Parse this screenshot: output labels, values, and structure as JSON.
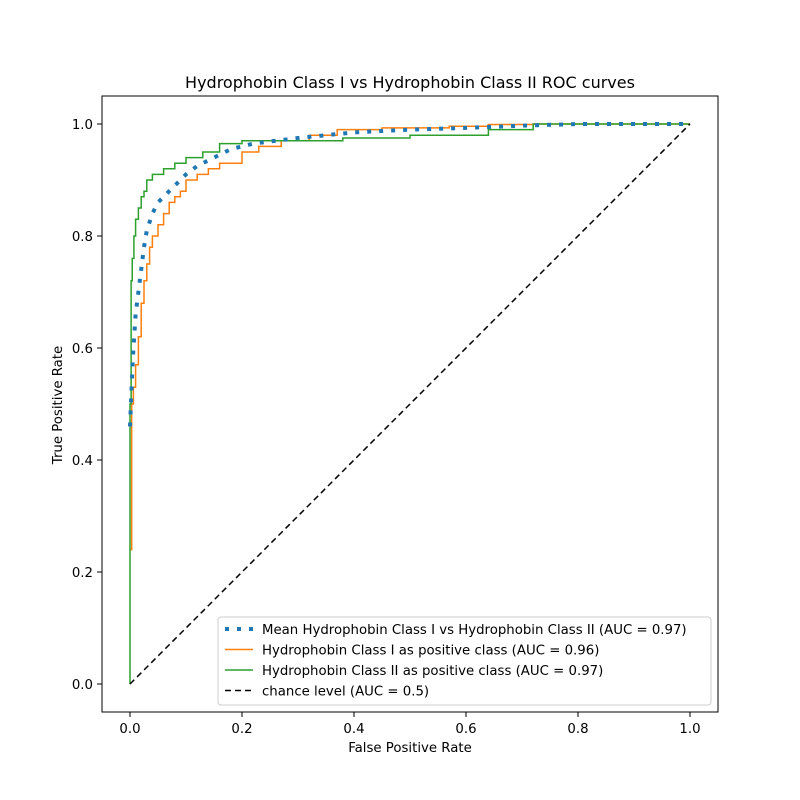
{
  "chart_data": {
    "type": "line",
    "title": "Hydrophobin Class I vs Hydrophobin Class II ROC curves",
    "xlabel": "False Positive Rate",
    "ylabel": "True Positive Rate",
    "xlim": [
      -0.05,
      1.05
    ],
    "ylim": [
      -0.05,
      1.05
    ],
    "xticks": [
      0.0,
      0.2,
      0.4,
      0.6,
      0.8,
      1.0
    ],
    "yticks": [
      0.0,
      0.2,
      0.4,
      0.6,
      0.8,
      1.0
    ],
    "xtick_labels": [
      "0.0",
      "0.2",
      "0.4",
      "0.6",
      "0.8",
      "1.0"
    ],
    "ytick_labels": [
      "0.0",
      "0.2",
      "0.4",
      "0.6",
      "0.8",
      "1.0"
    ],
    "grid": false,
    "legend_position": "lower-right",
    "series": [
      {
        "name": "Mean Hydrophobin Class I vs Hydrophobin Class II (AUC = 0.97)",
        "color": "#1f77b4",
        "style": "dotted",
        "x": [
          0.0,
          0.005,
          0.01,
          0.015,
          0.02,
          0.025,
          0.03,
          0.04,
          0.05,
          0.06,
          0.08,
          0.1,
          0.12,
          0.15,
          0.18,
          0.22,
          0.3,
          0.4,
          0.5,
          0.6,
          0.7,
          0.8,
          0.9,
          1.0
        ],
        "y": [
          0.46,
          0.58,
          0.66,
          0.7,
          0.74,
          0.78,
          0.81,
          0.84,
          0.86,
          0.87,
          0.89,
          0.91,
          0.925,
          0.94,
          0.955,
          0.965,
          0.975,
          0.985,
          0.99,
          0.993,
          0.997,
          1.0,
          1.0,
          1.0
        ]
      },
      {
        "name": "Hydrophobin Class I as positive class (AUC = 0.96)",
        "color": "#ff7f0e",
        "style": "steps",
        "x": [
          0.0,
          0.003,
          0.003,
          0.006,
          0.006,
          0.01,
          0.01,
          0.015,
          0.015,
          0.02,
          0.02,
          0.025,
          0.025,
          0.03,
          0.03,
          0.035,
          0.035,
          0.04,
          0.04,
          0.05,
          0.05,
          0.06,
          0.06,
          0.07,
          0.07,
          0.08,
          0.08,
          0.09,
          0.09,
          0.1,
          0.1,
          0.12,
          0.12,
          0.14,
          0.14,
          0.16,
          0.16,
          0.2,
          0.2,
          0.23,
          0.23,
          0.27,
          0.27,
          0.32,
          0.32,
          0.37,
          0.37,
          0.45,
          0.45,
          0.57,
          0.57,
          0.64,
          0.64,
          0.72,
          0.72,
          1.0
        ],
        "y": [
          0.24,
          0.24,
          0.5,
          0.5,
          0.53,
          0.53,
          0.57,
          0.57,
          0.62,
          0.62,
          0.68,
          0.68,
          0.72,
          0.72,
          0.75,
          0.75,
          0.78,
          0.78,
          0.8,
          0.8,
          0.82,
          0.82,
          0.84,
          0.84,
          0.86,
          0.86,
          0.87,
          0.87,
          0.88,
          0.88,
          0.9,
          0.9,
          0.91,
          0.91,
          0.92,
          0.92,
          0.93,
          0.93,
          0.95,
          0.95,
          0.96,
          0.96,
          0.97,
          0.97,
          0.98,
          0.98,
          0.99,
          0.99,
          0.993,
          0.993,
          0.996,
          0.996,
          0.999,
          0.999,
          1.0,
          1.0
        ]
      },
      {
        "name": "Hydrophobin Class II as positive class (AUC = 0.97)",
        "color": "#2ca02c",
        "style": "steps",
        "x": [
          0.0,
          0.0,
          0.002,
          0.002,
          0.004,
          0.004,
          0.007,
          0.007,
          0.01,
          0.01,
          0.015,
          0.015,
          0.02,
          0.02,
          0.025,
          0.025,
          0.03,
          0.03,
          0.04,
          0.04,
          0.06,
          0.06,
          0.08,
          0.08,
          0.1,
          0.1,
          0.13,
          0.13,
          0.16,
          0.16,
          0.2,
          0.2,
          0.38,
          0.38,
          0.5,
          0.5,
          0.64,
          0.64,
          0.72,
          0.72,
          1.0
        ],
        "y": [
          0.0,
          0.5,
          0.5,
          0.72,
          0.72,
          0.76,
          0.76,
          0.8,
          0.8,
          0.83,
          0.83,
          0.85,
          0.85,
          0.87,
          0.87,
          0.88,
          0.88,
          0.9,
          0.9,
          0.91,
          0.91,
          0.92,
          0.92,
          0.93,
          0.93,
          0.94,
          0.94,
          0.95,
          0.95,
          0.965,
          0.965,
          0.97,
          0.97,
          0.975,
          0.975,
          0.98,
          0.98,
          0.99,
          0.99,
          1.0,
          1.0
        ]
      },
      {
        "name": "chance level (AUC = 0.5)",
        "color": "#000000",
        "style": "dashed",
        "x": [
          0.0,
          1.0
        ],
        "y": [
          0.0,
          1.0
        ]
      }
    ]
  }
}
